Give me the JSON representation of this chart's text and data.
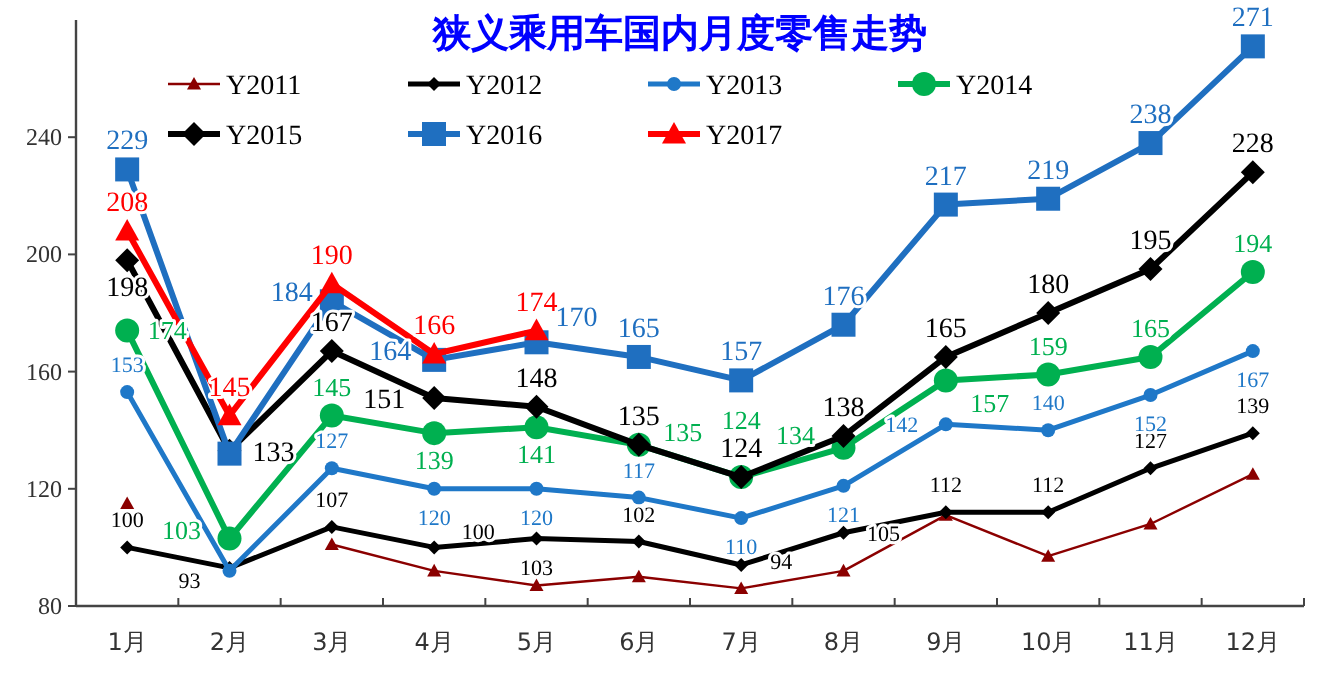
{
  "chart_data": {
    "type": "line",
    "title": "狭义乘用车国内月度零售走势",
    "categories": [
      "1月",
      "2月",
      "3月",
      "4月",
      "5月",
      "6月",
      "7月",
      "8月",
      "9月",
      "10月",
      "11月",
      "12月"
    ],
    "ylim": [
      80,
      280
    ],
    "yticks": [
      80,
      120,
      160,
      200,
      240
    ],
    "grid": false,
    "legend": "top",
    "series": [
      {
        "name": "Y2011",
        "color": "#8b0000",
        "marker": "triangle",
        "values": [
          115,
          null,
          101,
          92,
          87,
          90,
          86,
          92,
          111,
          97,
          108,
          125
        ]
      },
      {
        "name": "Y2012",
        "color": "#000000",
        "marker": "diamond",
        "values": [
          100,
          93,
          107,
          100,
          103,
          102,
          94,
          105,
          112,
          112,
          127,
          139
        ],
        "value_labels": [
          "100",
          "93",
          "107",
          "100",
          "103",
          "102",
          "94",
          "105",
          "112",
          "112",
          "127",
          "139"
        ]
      },
      {
        "name": "Y2013",
        "color": "#1f78c8",
        "marker": "circle",
        "values": [
          153,
          92,
          127,
          120,
          120,
          117,
          110,
          121,
          142,
          140,
          152,
          167
        ],
        "value_labels": [
          "153",
          null,
          "127",
          "120",
          "120",
          "117",
          "110",
          "121",
          "142",
          "140",
          "152",
          "167"
        ]
      },
      {
        "name": "Y2014",
        "color": "#00b050",
        "marker": "circle",
        "values": [
          174,
          103,
          145,
          139,
          141,
          135,
          124,
          134,
          157,
          159,
          165,
          194
        ],
        "value_labels": [
          "174",
          "103",
          "145",
          "139",
          "141",
          "135",
          "124",
          "134",
          "157",
          "159",
          "165",
          "194"
        ]
      },
      {
        "name": "Y2015",
        "color": "#000000",
        "marker": "diamond",
        "values": [
          198,
          133,
          167,
          151,
          148,
          135,
          124,
          138,
          165,
          180,
          195,
          228
        ],
        "value_labels": [
          "198",
          "133",
          "167",
          "151",
          "148",
          "135",
          "124",
          "138",
          "165",
          "180",
          "195",
          "228"
        ]
      },
      {
        "name": "Y2016",
        "color": "#1f6fc0",
        "marker": "square",
        "values": [
          229,
          132,
          184,
          164,
          170,
          165,
          157,
          176,
          217,
          219,
          238,
          271
        ],
        "value_labels": [
          "229",
          null,
          "184",
          "164",
          "170",
          "165",
          "157",
          "176",
          "217",
          "219",
          "238",
          "271"
        ]
      },
      {
        "name": "Y2017",
        "color": "#ff0000",
        "marker": "triangle",
        "values": [
          208,
          145,
          190,
          166,
          174,
          null,
          null,
          null,
          null,
          null,
          null,
          null
        ],
        "value_labels": [
          "208",
          "145",
          "190",
          "166",
          "174",
          null,
          null,
          null,
          null,
          null,
          null,
          null
        ]
      }
    ]
  }
}
